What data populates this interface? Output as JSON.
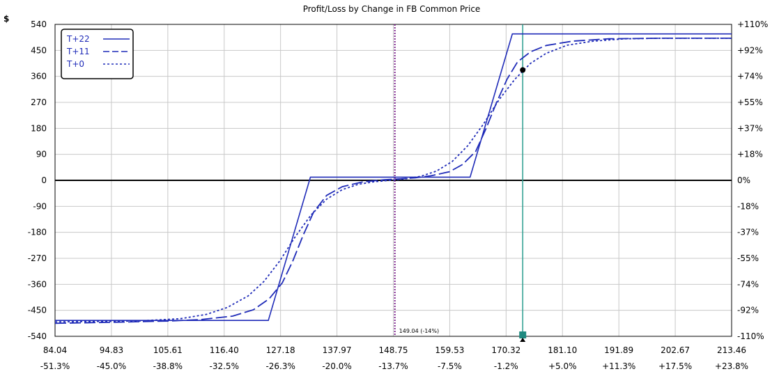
{
  "chart_data": {
    "type": "line",
    "title": "Profit/Loss by Change in FB Common Price",
    "y_unit_label": "$",
    "xlim": [
      84.04,
      213.46
    ],
    "ylim": [
      -540,
      540
    ],
    "x_ticks": [
      "84.04",
      "94.83",
      "105.61",
      "116.40",
      "127.18",
      "137.97",
      "148.75",
      "159.53",
      "170.32",
      "181.10",
      "191.89",
      "202.67",
      "213.46"
    ],
    "x_ticks_pct": [
      "-51.3%",
      "-45.0%",
      "-38.8%",
      "-32.5%",
      "-26.3%",
      "-20.0%",
      "-13.7%",
      "-7.5%",
      "-1.2%",
      "+5.0%",
      "+11.3%",
      "+17.5%",
      "+23.8%"
    ],
    "y_ticks": [
      "540",
      "450",
      "360",
      "270",
      "180",
      "90",
      "0",
      "-90",
      "-180",
      "-270",
      "-360",
      "-450",
      "-540"
    ],
    "y2_ticks": [
      "+110%",
      "+92%",
      "+74%",
      "+55%",
      "+37%",
      "+18%",
      "0%",
      "-18%",
      "-37%",
      "-55%",
      "-74%",
      "-92%",
      "-110%"
    ],
    "grid": true,
    "legend": "top-left",
    "colors": {
      "series": "#1f2bb8",
      "marker_line": "#7a1f8a",
      "price_line": "#2a9d8f",
      "zero_line": "#000000"
    },
    "series": [
      {
        "name": "T+22",
        "style": "solid",
        "x": [
          84.04,
          124.84,
          132.89,
          163.44,
          171.51,
          213.46
        ],
        "y": [
          -485,
          -485,
          11,
          11,
          507,
          507
        ]
      },
      {
        "name": "T+11",
        "style": "dashed",
        "x": [
          84.04,
          96.0,
          106.0,
          112.0,
          118.0,
          122.0,
          125.0,
          127.5,
          129.5,
          131.5,
          133.5,
          136.0,
          139.0,
          143.0,
          147.0,
          150.0,
          153.0,
          156.0,
          159.5,
          162.0,
          164.5,
          166.5,
          168.5,
          170.5,
          172.5,
          175.0,
          178.0,
          183.0,
          190.0,
          200.0,
          213.46
        ],
        "y": [
          -495,
          -491,
          -487,
          -482,
          -470,
          -448,
          -410,
          -355,
          -280,
          -190,
          -110,
          -52,
          -22,
          -5,
          2,
          5,
          9,
          16,
          30,
          55,
          100,
          180,
          270,
          350,
          410,
          445,
          467,
          482,
          490,
          492,
          492
        ]
      },
      {
        "name": "T+0",
        "style": "dotted",
        "x": [
          84.04,
          100.0,
          108.0,
          113.0,
          117.0,
          121.0,
          124.0,
          127.0,
          130.0,
          133.0,
          136.0,
          139.0,
          142.0,
          145.0,
          148.0,
          151.0,
          154.0,
          157.0,
          160.0,
          163.0,
          166.0,
          169.0,
          172.0,
          175.0,
          178.0,
          182.0,
          187.0,
          193.0,
          200.0,
          213.46
        ],
        "y": [
          -490,
          -487,
          -479,
          -464,
          -440,
          -400,
          -350,
          -280,
          -195,
          -120,
          -65,
          -32,
          -14,
          -5,
          0,
          5,
          14,
          32,
          65,
          120,
          195,
          280,
          350,
          405,
          440,
          468,
          482,
          490,
          492,
          492
        ]
      }
    ],
    "vertical_marker": {
      "x": 149.04,
      "label": "149.04 (-14%)"
    },
    "current_price": {
      "x": 173.5,
      "point_y": 382
    }
  }
}
